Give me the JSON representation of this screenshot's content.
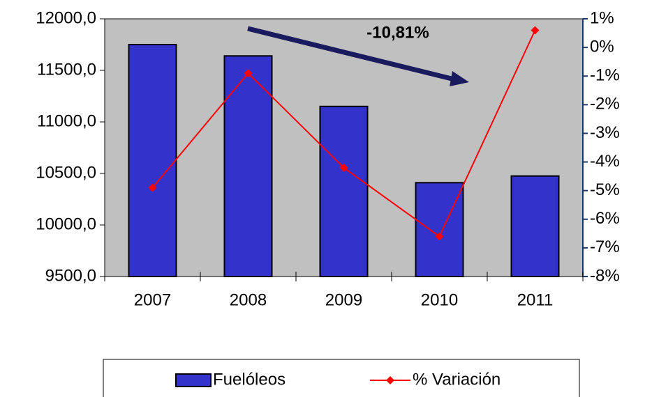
{
  "chart_data": {
    "type": "bar-line",
    "annotation": "-10,81%",
    "categories": [
      "2007",
      "2008",
      "2009",
      "2010",
      "2011"
    ],
    "series": [
      {
        "name": "Fuelóleos",
        "type": "bar",
        "color": "#3333cc",
        "values": [
          11750,
          11640,
          11150,
          10410,
          10475
        ]
      },
      {
        "name": "% Variación",
        "type": "line",
        "color": "#ff0000",
        "axis": "y2",
        "values": [
          -4.9,
          -0.9,
          -4.2,
          -6.6,
          0.6
        ]
      }
    ],
    "ylim": [
      9500,
      12000
    ],
    "yticks": [
      {
        "value": 9500,
        "label": "9500,0"
      },
      {
        "value": 10000,
        "label": "10000,0"
      },
      {
        "value": 10500,
        "label": "10500,0"
      },
      {
        "value": 11000,
        "label": "11000,0"
      },
      {
        "value": 11500,
        "label": "11500,0"
      },
      {
        "value": 12000,
        "label": "12000,0"
      }
    ],
    "y2lim": [
      -8,
      1
    ],
    "y2ticks": [
      {
        "value": -8,
        "label": "-8%"
      },
      {
        "value": -7,
        "label": "-7%"
      },
      {
        "value": -6,
        "label": "-6%"
      },
      {
        "value": -5,
        "label": "-5%"
      },
      {
        "value": -4,
        "label": "-4%"
      },
      {
        "value": -3,
        "label": "-3%"
      },
      {
        "value": -2,
        "label": "-2%"
      },
      {
        "value": -1,
        "label": "-1%"
      },
      {
        "value": 0,
        "label": "0%"
      },
      {
        "value": 1,
        "label": "1%"
      }
    ],
    "plot_background": "#c0c0c0"
  }
}
